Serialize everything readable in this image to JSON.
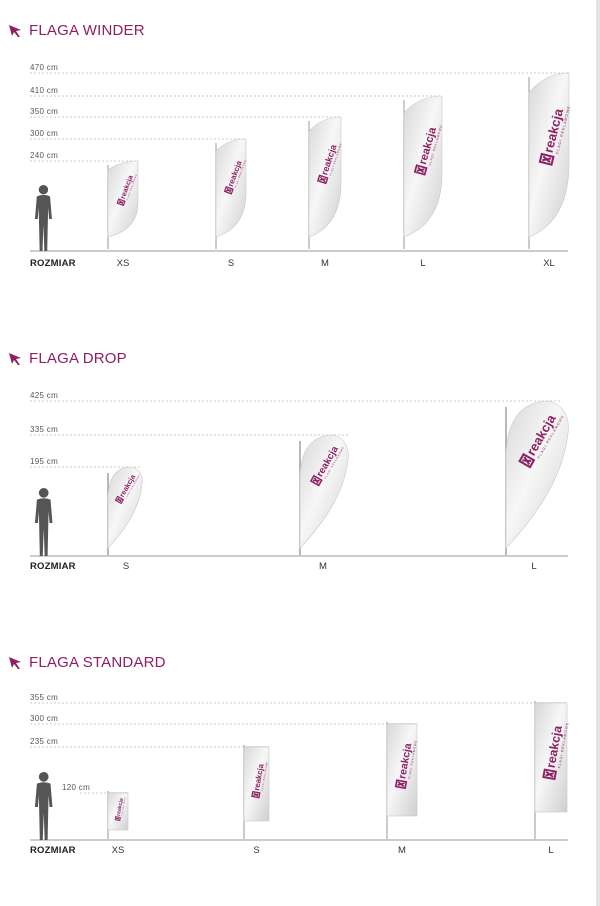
{
  "colors": {
    "accent": "#8d1f63",
    "guide": "#bbbbbb",
    "baseline": "#999999"
  },
  "icons": {
    "section": "flag-arrow-icon"
  },
  "size_axis_label": "ROZMIAR",
  "sections": [
    {
      "title": "FLAGA WINDER",
      "heights": [
        "470 cm",
        "410 cm",
        "350 cm",
        "300 cm",
        "240 cm"
      ],
      "sizes": [
        "XS",
        "S",
        "M",
        "L",
        "XL"
      ]
    },
    {
      "title": "FLAGA DROP",
      "heights": [
        "425 cm",
        "335 cm",
        "195 cm"
      ],
      "sizes": [
        "S",
        "M",
        "L"
      ]
    },
    {
      "title": "FLAGA STANDARD",
      "heights": [
        "355 cm",
        "300 cm",
        "235 cm",
        "120 cm"
      ],
      "sizes": [
        "XS",
        "S",
        "M",
        "L"
      ]
    }
  ],
  "flag_print": {
    "brand": "reakcja",
    "tagline": "FLAGI REKLAMOWE"
  }
}
